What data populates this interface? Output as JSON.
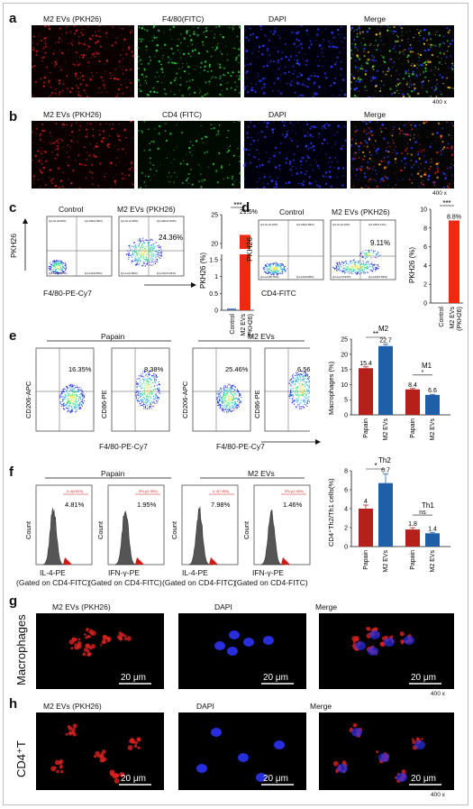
{
  "panels": {
    "a": {
      "label": "a",
      "titles": [
        "M2 EVs (PKH26)",
        "F4/80(FITC)",
        "DAPI",
        "Merge"
      ],
      "magnification": "400 x"
    },
    "b": {
      "label": "b",
      "titles": [
        "M2 EVs (PKH26)",
        "CD4 (FITC)",
        "DAPI",
        "Merge"
      ],
      "magnification": "400 x"
    },
    "c": {
      "label": "c",
      "flow_titles": [
        "Control",
        "M2 EVs (PKH26)"
      ],
      "y_axis": "PKH26",
      "x_axis": "F4/80-PE-Cy7",
      "percent": "24.36%",
      "quadrants_control": [
        "Q1-UL(0.00%)",
        "Q1-UR(0.00%)",
        "Q1-LL(99.95%)",
        "Q1-LR(0.05%)"
      ],
      "quadrants_treated": [
        "Q1-UL(1.00%)",
        "Q1-UR(24.36%)",
        "Q1-LL(0.00%)",
        "Q1-LR(74.64%)"
      ]
    },
    "d": {
      "label": "d",
      "flow_titles": [
        "Control",
        "M2 EVs (PKH26)"
      ],
      "y_axis": "PKH26",
      "x_axis": "CD4-FITC",
      "percent": "9.11%",
      "quadrants_control": [
        "Q1-UL(0.13%)",
        "Q1-UR(0.00%)",
        "Q1-LL(99.79%)",
        "Q1-LR(0.08%)"
      ],
      "quadrants_treated": [
        "Q1-UL(0.13%)",
        "Q1-UR(9.11%)",
        "Q1-LL(74.93%)",
        "Q1-LR(15.83%)"
      ]
    },
    "e": {
      "label": "e",
      "groups": [
        "Papain",
        "M2 EVs"
      ],
      "plots": [
        {
          "ylabel": "CD206-APC",
          "percent": "16.35%"
        },
        {
          "ylabel": "CD86-PE",
          "percent": "8.38%"
        },
        {
          "ylabel": "CD206-APC",
          "percent": "25.46%"
        },
        {
          "ylabel": "CD86-PE",
          "percent": "6.56%"
        }
      ],
      "x_axis": "F4/80-PE-Cy7"
    },
    "f": {
      "label": "f",
      "groups": [
        "Papain",
        "M2 EVs"
      ],
      "plots": [
        {
          "xlabel": "IL-4-PE",
          "percent": "4.81%"
        },
        {
          "xlabel": "IFN-γ-PE",
          "percent": "1.95%"
        },
        {
          "xlabel": "IL-4-PE",
          "percent": "7.98%"
        },
        {
          "xlabel": "IFN-γ-PE",
          "percent": "1.46%"
        }
      ],
      "gate_label": "(Gated on CD4-FITC)",
      "y_axis": "Count",
      "gate_names": [
        "IL-4(4.81%)",
        "IFN-γ(1.95%)",
        "IL-4(7.98%)",
        "IFN-γ(1.46%)"
      ]
    },
    "g": {
      "label": "g",
      "row_label": "Macrophages",
      "titles": [
        "M2 EVs (PKH26)",
        "DAPI",
        "Merge"
      ],
      "scale": "20 μm",
      "magnification": "400 x"
    },
    "h": {
      "label": "h",
      "row_label": "CD4⁺T",
      "titles": [
        "M2 EVs (PKH26)",
        "DAPI",
        "Merge"
      ],
      "scale": "20 μm",
      "magnification": "400 x"
    }
  },
  "significance": {
    "c": "***",
    "d": "***",
    "e_m2": "**",
    "e_m1": "*",
    "f_th2": "*",
    "f_th1": "ns"
  },
  "colors": {
    "papain": "#b5201b",
    "m2evs": "#1f5fa8",
    "pkh26_bar": "#f02a10",
    "control_bar": "#4a73b5"
  },
  "chart_data": [
    {
      "type": "bar",
      "title": "",
      "ylabel": "PKH26 (%)",
      "categories": [
        "Control",
        "M2 EVs (PKH26)"
      ],
      "values": [
        0.05,
        21.5
      ],
      "data_labels": [
        "",
        "21.5%"
      ],
      "y_axis_break": true,
      "yticks_low": [
        0,
        0.5,
        1.0,
        1.5
      ],
      "yticks_high": [
        20,
        25
      ],
      "grid": false
    },
    {
      "type": "bar",
      "title": "",
      "ylabel": "PKH26 (%)",
      "categories": [
        "Control",
        "M2 EVs (PKH26)"
      ],
      "values": [
        0.0,
        8.8
      ],
      "data_labels": [
        "",
        "8.8%"
      ],
      "yticks": [
        0,
        2,
        4,
        6,
        8,
        10
      ],
      "ylim": [
        0,
        10
      ],
      "grid": false
    },
    {
      "type": "bar",
      "title": "",
      "ylabel": "Macrophages (%)",
      "categories": [
        "Papain",
        "M2 EVs",
        "Papain",
        "M2 EVs"
      ],
      "group_labels": [
        "M2",
        "M1"
      ],
      "values": [
        15.4,
        22.7,
        8.4,
        6.6
      ],
      "yticks": [
        0,
        5,
        10,
        15,
        20,
        25
      ],
      "ylim": [
        0,
        25
      ],
      "grid": false
    },
    {
      "type": "bar",
      "title": "",
      "ylabel": "CD4⁺Th2/Th1 cells(%)",
      "categories": [
        "Papain",
        "M2 EVs",
        "Papain",
        "M2 EVs"
      ],
      "group_labels": [
        "Th2",
        "Th1"
      ],
      "values": [
        4.0,
        6.7,
        1.8,
        1.4
      ],
      "yticks": [
        0,
        2,
        4,
        6,
        8
      ],
      "ylim": [
        0,
        8
      ],
      "grid": false
    }
  ]
}
